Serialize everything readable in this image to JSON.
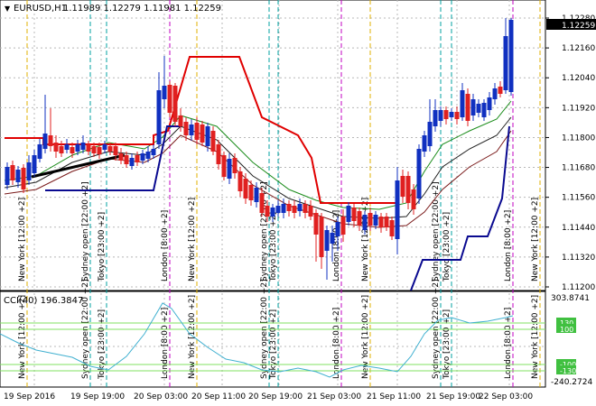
{
  "main_title": "EURUSD,H1",
  "ohlc": "1.11989 1.12279 1.11981 1.12259",
  "current_price_label": "1.12259",
  "price_ticks": [
    "1.12280",
    "1.12160",
    "1.12040",
    "1.11920",
    "1.11800",
    "1.11680",
    "1.11560",
    "1.11440",
    "1.11320",
    "1.11200"
  ],
  "cci_title": "CCI(40) 196.3847",
  "cci_ticks": [
    "303.8741",
    "-240.2724"
  ],
  "cci_levels": [
    "130",
    "100",
    "-100",
    "-130"
  ],
  "time_ticks": [
    "19 Sep 2016",
    "19 Sep 19:00",
    "20 Sep 03:00",
    "20 Sep 11:00",
    "20 Sep 19:00",
    "21 Sep 03:00",
    "21 Sep 11:00",
    "21 Sep 19:00",
    "22 Sep 03:00"
  ],
  "session_labels": [
    {
      "text": "New York [12:00 +2]",
      "color": "#e0b000"
    },
    {
      "text": "Sydney open [22:00 +2]",
      "color": "#00a0a0"
    },
    {
      "text": "Tokyo [23:00 +2]",
      "color": "#00a0a0"
    },
    {
      "text": "London [8:00 +2]",
      "color": "#c000c0"
    },
    {
      "text": "New York [12:00 +2]",
      "color": "#e0b000"
    },
    {
      "text": "Sydney open [22:00 +2]",
      "color": "#00a0a0"
    },
    {
      "text": "Tokyo [23:00 +2]",
      "color": "#00a0a0"
    },
    {
      "text": "London [8:00 +2]",
      "color": "#c000c0"
    },
    {
      "text": "New York [12:00 +2]",
      "color": "#e0b000"
    },
    {
      "text": "Sydney open [22:00 +2]",
      "color": "#00a0a0"
    },
    {
      "text": "Tokyo [23:00 +2]",
      "color": "#00a0a0"
    },
    {
      "text": "London [8:00 +2]",
      "color": "#c000c0"
    },
    {
      "text": "New York [12:00 +2]",
      "color": "#e0b000"
    }
  ],
  "colors": {
    "bull": "#1030c0",
    "bear": "#e02020",
    "grid": "#b8b8b8",
    "cci_line": "#40b0d0",
    "level_band": "#80e060"
  }
}
